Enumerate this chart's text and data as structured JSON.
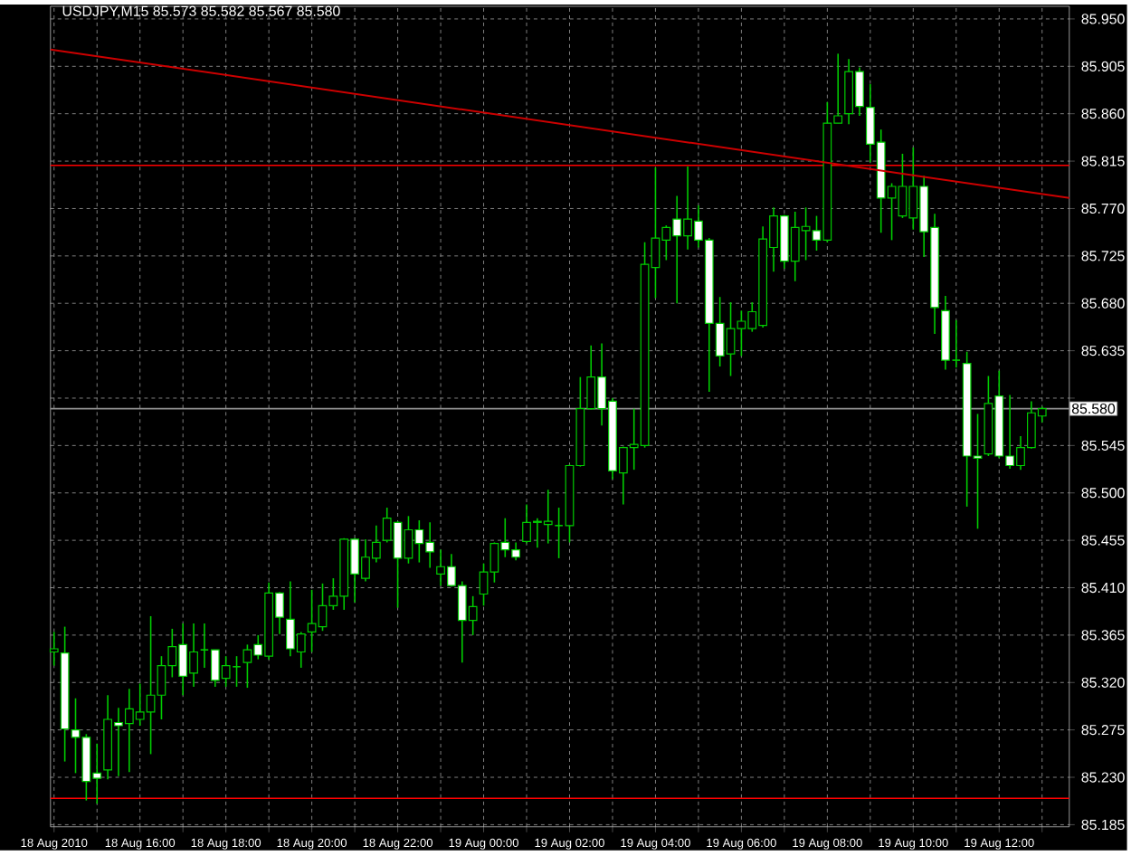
{
  "chart_data": {
    "type": "candlestick",
    "title": "USDJPY,M15  85.573 85.582 85.567 85.580",
    "color": "#00cc00",
    "x": [
      "2010-08-18T14:00",
      "2010-08-18T14:15",
      "2010-08-18T14:30",
      "2010-08-18T14:45",
      "2010-08-18T15:00",
      "2010-08-18T15:15",
      "2010-08-18T15:30",
      "2010-08-18T15:45",
      "2010-08-18T16:00",
      "2010-08-18T16:15",
      "2010-08-18T16:30",
      "2010-08-18T16:45",
      "2010-08-18T17:00",
      "2010-08-18T17:15",
      "2010-08-18T17:30",
      "2010-08-18T17:45",
      "2010-08-18T18:00",
      "2010-08-18T18:15",
      "2010-08-18T18:30",
      "2010-08-18T18:45",
      "2010-08-18T19:00",
      "2010-08-18T19:15",
      "2010-08-18T19:30",
      "2010-08-18T19:45",
      "2010-08-18T20:00",
      "2010-08-18T20:15",
      "2010-08-18T20:30",
      "2010-08-18T20:45",
      "2010-08-18T21:00",
      "2010-08-18T21:15",
      "2010-08-18T21:30",
      "2010-08-18T21:45",
      "2010-08-18T22:00",
      "2010-08-18T22:15",
      "2010-08-18T22:30",
      "2010-08-18T22:45",
      "2010-08-18T23:00",
      "2010-08-18T23:15",
      "2010-08-18T23:30",
      "2010-08-18T23:45",
      "2010-08-19T00:00",
      "2010-08-19T00:15",
      "2010-08-19T00:30",
      "2010-08-19T00:45",
      "2010-08-19T01:00",
      "2010-08-19T01:15",
      "2010-08-19T01:30",
      "2010-08-19T01:45",
      "2010-08-19T02:00",
      "2010-08-19T02:15",
      "2010-08-19T02:30",
      "2010-08-19T02:45",
      "2010-08-19T03:00",
      "2010-08-19T03:15",
      "2010-08-19T03:30",
      "2010-08-19T03:45",
      "2010-08-19T04:00",
      "2010-08-19T04:15",
      "2010-08-19T04:30",
      "2010-08-19T04:45",
      "2010-08-19T05:00",
      "2010-08-19T05:15",
      "2010-08-19T05:30",
      "2010-08-19T05:45",
      "2010-08-19T06:00",
      "2010-08-19T06:15",
      "2010-08-19T06:30",
      "2010-08-19T06:45",
      "2010-08-19T07:00",
      "2010-08-19T07:15",
      "2010-08-19T07:30",
      "2010-08-19T07:45",
      "2010-08-19T08:00",
      "2010-08-19T08:15",
      "2010-08-19T08:30",
      "2010-08-19T08:45",
      "2010-08-19T09:00",
      "2010-08-19T09:15",
      "2010-08-19T09:30",
      "2010-08-19T09:45",
      "2010-08-19T10:00",
      "2010-08-19T10:15",
      "2010-08-19T10:30",
      "2010-08-19T10:45",
      "2010-08-19T11:00",
      "2010-08-19T11:15",
      "2010-08-19T11:30",
      "2010-08-19T11:45",
      "2010-08-19T12:00",
      "2010-08-19T12:15",
      "2010-08-19T12:30",
      "2010-08-19T12:45",
      "2010-08-19T13:00"
    ],
    "ohlc": [
      [
        85.349,
        85.368,
        85.336,
        85.352
      ],
      [
        85.348,
        85.373,
        85.245,
        85.276
      ],
      [
        85.275,
        85.305,
        85.234,
        85.268
      ],
      [
        85.268,
        85.271,
        85.208,
        85.226
      ],
      [
        85.234,
        85.262,
        85.205,
        85.229
      ],
      [
        85.237,
        85.308,
        85.228,
        85.285
      ],
      [
        85.282,
        85.296,
        85.231,
        85.279
      ],
      [
        85.281,
        85.314,
        85.235,
        85.295
      ],
      [
        85.285,
        85.319,
        85.279,
        85.292
      ],
      [
        85.292,
        85.383,
        85.252,
        85.308
      ],
      [
        85.308,
        85.345,
        85.285,
        85.336
      ],
      [
        85.336,
        85.371,
        85.325,
        85.354
      ],
      [
        85.356,
        85.376,
        85.308,
        85.326
      ],
      [
        85.329,
        85.376,
        85.316,
        85.349
      ],
      [
        85.351,
        85.376,
        85.334,
        85.351
      ],
      [
        85.351,
        85.351,
        85.316,
        85.322
      ],
      [
        85.324,
        85.345,
        85.316,
        85.336
      ],
      [
        85.335,
        85.345,
        85.316,
        85.335
      ],
      [
        85.339,
        85.356,
        85.315,
        85.351
      ],
      [
        85.356,
        85.365,
        85.342,
        85.346
      ],
      [
        85.345,
        85.415,
        85.342,
        85.405
      ],
      [
        85.405,
        85.406,
        85.366,
        85.382
      ],
      [
        85.38,
        85.416,
        85.345,
        85.352
      ],
      [
        85.349,
        85.368,
        85.334,
        85.366
      ],
      [
        85.368,
        85.408,
        85.349,
        85.376
      ],
      [
        85.373,
        85.414,
        85.369,
        85.393
      ],
      [
        85.393,
        85.419,
        85.389,
        85.402
      ],
      [
        85.402,
        85.457,
        85.389,
        85.456
      ],
      [
        85.456,
        85.457,
        85.396,
        85.423
      ],
      [
        85.419,
        85.456,
        85.416,
        85.439
      ],
      [
        85.438,
        85.469,
        85.434,
        85.453
      ],
      [
        85.455,
        85.486,
        85.453,
        85.476
      ],
      [
        85.472,
        85.473,
        85.391,
        85.438
      ],
      [
        85.438,
        85.478,
        85.433,
        85.465
      ],
      [
        85.465,
        85.474,
        85.434,
        85.452
      ],
      [
        85.453,
        85.472,
        85.429,
        85.444
      ],
      [
        85.423,
        85.446,
        85.412,
        85.43
      ],
      [
        85.43,
        85.442,
        85.411,
        85.412
      ],
      [
        85.412,
        85.416,
        85.339,
        85.379
      ],
      [
        85.379,
        85.402,
        85.365,
        85.392
      ],
      [
        85.404,
        85.433,
        85.393,
        85.425
      ],
      [
        85.425,
        85.453,
        85.415,
        85.452
      ],
      [
        85.453,
        85.476,
        85.439,
        85.446
      ],
      [
        85.446,
        85.453,
        85.436,
        85.439
      ],
      [
        85.454,
        85.489,
        85.452,
        85.472
      ],
      [
        85.472,
        85.476,
        85.448,
        85.473
      ],
      [
        85.47,
        85.503,
        85.452,
        85.473
      ],
      [
        85.469,
        85.486,
        85.438,
        85.469
      ],
      [
        85.469,
        85.527,
        85.453,
        85.526
      ],
      [
        85.526,
        85.61,
        85.525,
        85.58
      ],
      [
        85.58,
        85.64,
        85.579,
        85.61
      ],
      [
        85.61,
        85.642,
        85.564,
        85.58
      ],
      [
        85.587,
        85.59,
        85.513,
        85.521
      ],
      [
        85.519,
        85.544,
        85.489,
        85.543
      ],
      [
        85.543,
        85.58,
        85.522,
        85.546
      ],
      [
        85.545,
        85.738,
        85.543,
        85.717
      ],
      [
        85.714,
        85.809,
        85.685,
        85.742
      ],
      [
        85.74,
        85.754,
        85.721,
        85.752
      ],
      [
        85.76,
        85.782,
        85.68,
        85.744
      ],
      [
        85.744,
        85.81,
        85.731,
        85.76
      ],
      [
        85.758,
        85.773,
        85.733,
        85.74
      ],
      [
        85.74,
        85.742,
        85.596,
        85.661
      ],
      [
        85.661,
        85.686,
        85.62,
        85.63
      ],
      [
        85.632,
        85.681,
        85.611,
        85.656
      ],
      [
        85.656,
        85.673,
        85.63,
        85.663
      ],
      [
        85.656,
        85.681,
        85.653,
        85.672
      ],
      [
        85.659,
        85.753,
        85.657,
        85.741
      ],
      [
        85.733,
        85.771,
        85.71,
        85.763
      ],
      [
        85.763,
        85.764,
        85.713,
        85.72
      ],
      [
        85.72,
        85.767,
        85.701,
        85.752
      ],
      [
        85.749,
        85.771,
        85.721,
        85.753
      ],
      [
        85.749,
        85.763,
        85.73,
        85.74
      ],
      [
        85.74,
        85.871,
        85.738,
        85.851
      ],
      [
        85.851,
        85.917,
        85.851,
        85.858
      ],
      [
        85.86,
        85.912,
        85.85,
        85.9
      ],
      [
        85.9,
        85.904,
        85.858,
        85.867
      ],
      [
        85.866,
        85.888,
        85.814,
        85.831
      ],
      [
        85.833,
        85.845,
        85.747,
        85.78
      ],
      [
        85.78,
        85.794,
        85.74,
        85.791
      ],
      [
        85.763,
        85.822,
        85.761,
        85.791
      ],
      [
        85.761,
        85.828,
        85.75,
        85.791
      ],
      [
        85.791,
        85.801,
        85.724,
        85.748
      ],
      [
        85.752,
        85.765,
        85.651,
        85.676
      ],
      [
        85.673,
        85.687,
        85.617,
        85.626
      ],
      [
        85.626,
        85.664,
        85.619,
        85.626
      ],
      [
        85.623,
        85.634,
        85.487,
        85.535
      ],
      [
        85.535,
        85.575,
        85.466,
        85.533
      ],
      [
        85.537,
        85.611,
        85.535,
        85.585
      ],
      [
        85.592,
        85.616,
        85.533,
        85.535
      ],
      [
        85.535,
        85.593,
        85.523,
        85.526
      ],
      [
        85.526,
        85.554,
        85.522,
        85.543
      ],
      [
        85.543,
        85.587,
        85.542,
        85.576
      ],
      [
        85.573,
        85.582,
        85.567,
        85.58
      ]
    ],
    "series": [
      {
        "type": "line",
        "color": "#cc0000",
        "x": [
          "2010-08-18T13:55",
          "2010-08-19T13:38"
        ],
        "values": [
          85.921,
          85.78
        ]
      }
    ],
    "xlim": [
      "2010-08-18T13:55",
      "2010-08-19T13:38"
    ],
    "ylim": [
      85.183,
      85.962
    ],
    "xticks": [
      {
        "value": "2010-08-18T14:00",
        "label": "18 Aug 2010"
      },
      {
        "value": "2010-08-18T15:00",
        "label": null
      },
      {
        "value": "2010-08-18T16:00",
        "label": "18 Aug 16:00"
      },
      {
        "value": "2010-08-18T17:00",
        "label": null
      },
      {
        "value": "2010-08-18T18:00",
        "label": "18 Aug 18:00"
      },
      {
        "value": "2010-08-18T19:00",
        "label": null
      },
      {
        "value": "2010-08-18T20:00",
        "label": "18 Aug 20:00"
      },
      {
        "value": "2010-08-18T21:00",
        "label": null
      },
      {
        "value": "2010-08-18T22:00",
        "label": "18 Aug 22:00"
      },
      {
        "value": "2010-08-18T23:00",
        "label": null
      },
      {
        "value": "2010-08-19T00:00",
        "label": "19 Aug 00:00"
      },
      {
        "value": "2010-08-19T01:00",
        "label": null
      },
      {
        "value": "2010-08-19T02:00",
        "label": "19 Aug 02:00"
      },
      {
        "value": "2010-08-19T03:00",
        "label": null
      },
      {
        "value": "2010-08-19T04:00",
        "label": "19 Aug 04:00"
      },
      {
        "value": "2010-08-19T05:00",
        "label": null
      },
      {
        "value": "2010-08-19T06:00",
        "label": "19 Aug 06:00"
      },
      {
        "value": "2010-08-19T07:00",
        "label": null
      },
      {
        "value": "2010-08-19T08:00",
        "label": "19 Aug 08:00"
      },
      {
        "value": "2010-08-19T09:00",
        "label": null
      },
      {
        "value": "2010-08-19T10:00",
        "label": "19 Aug 10:00"
      },
      {
        "value": "2010-08-19T11:00",
        "label": null
      },
      {
        "value": "2010-08-19T12:00",
        "label": "19 Aug 12:00"
      },
      {
        "value": "2010-08-19T13:00",
        "label": null
      }
    ],
    "yticks": [
      {
        "value": 85.185,
        "label": "85.185"
      },
      {
        "value": 85.23,
        "label": "85.230"
      },
      {
        "value": 85.275,
        "label": "85.275"
      },
      {
        "value": 85.32,
        "label": "85.320"
      },
      {
        "value": 85.365,
        "label": "85.365"
      },
      {
        "value": 85.41,
        "label": "85.410"
      },
      {
        "value": 85.455,
        "label": "85.455"
      },
      {
        "value": 85.5,
        "label": "85.500"
      },
      {
        "value": 85.545,
        "label": "85.545"
      },
      {
        "value": 85.59,
        "label": null
      },
      {
        "value": 85.635,
        "label": "85.635"
      },
      {
        "value": 85.68,
        "label": "85.680"
      },
      {
        "value": 85.725,
        "label": "85.725"
      },
      {
        "value": 85.77,
        "label": "85.770"
      },
      {
        "value": 85.815,
        "label": "85.815"
      },
      {
        "value": 85.86,
        "label": "85.860"
      },
      {
        "value": 85.905,
        "label": "85.905"
      },
      {
        "value": 85.95,
        "label": "85.950"
      }
    ],
    "grid": true,
    "ref_lines": [
      {
        "axis": "y",
        "value": 85.811,
        "color": "#ff0000"
      },
      {
        "axis": "y",
        "value": 85.21,
        "color": "#ff0000"
      },
      {
        "axis": "y",
        "value": 85.58,
        "color": "#909090",
        "label": "85.580"
      }
    ]
  }
}
